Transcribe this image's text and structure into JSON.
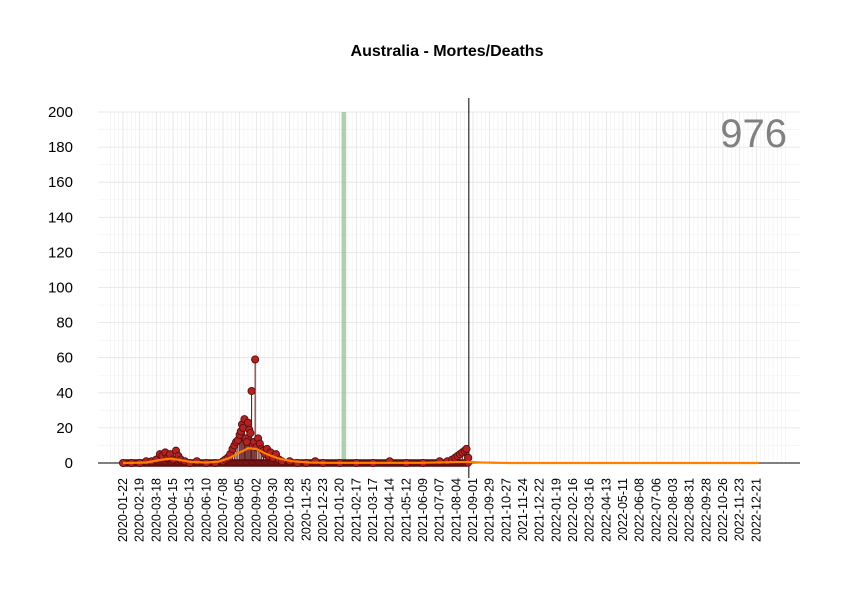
{
  "chart_data": {
    "type": "line",
    "title": "Australia - Mortes/Deaths",
    "total_label": "976",
    "xlabel": "",
    "ylabel": "",
    "ylim": [
      0,
      200
    ],
    "y_ticks": [
      0,
      20,
      40,
      60,
      80,
      100,
      120,
      140,
      160,
      180,
      200
    ],
    "x_range": [
      "2020-01-22",
      "2023-01-18"
    ],
    "x_tick_labels": [
      "2020-01-22",
      "2020-02-19",
      "2020-03-18",
      "2020-04-15",
      "2020-05-13",
      "2020-06-10",
      "2020-07-08",
      "2020-08-05",
      "2020-09-02",
      "2020-09-30",
      "2020-10-28",
      "2020-11-25",
      "2020-12-23",
      "2021-01-20",
      "2021-02-17",
      "2021-03-17",
      "2021-04-14",
      "2021-05-12",
      "2021-06-09",
      "2021-07-07",
      "2021-08-04",
      "2021-09-01",
      "2021-09-29",
      "2021-10-27",
      "2021-11-24",
      "2021-12-22",
      "2022-01-19",
      "2022-02-16",
      "2022-03-16",
      "2022-04-13",
      "2022-05-11",
      "2022-06-08",
      "2022-07-06",
      "2022-08-03",
      "2022-08-31",
      "2022-09-28",
      "2022-10-26",
      "2022-11-23",
      "2022-12-21"
    ],
    "vertical_line_date": "2021-08-25",
    "highlight_band": [
      "2021-01-23",
      "2021-01-31"
    ],
    "grid": true,
    "series": [
      {
        "style": "points-with-stems",
        "color": "#b22222",
        "points": [
          [
            "2020-01-22",
            0
          ],
          [
            "2020-02-05",
            0
          ],
          [
            "2020-02-19",
            0
          ],
          [
            "2020-03-01",
            1
          ],
          [
            "2020-03-10",
            1
          ],
          [
            "2020-03-18",
            2
          ],
          [
            "2020-03-24",
            5
          ],
          [
            "2020-03-28",
            4
          ],
          [
            "2020-04-02",
            6
          ],
          [
            "2020-04-06",
            3
          ],
          [
            "2020-04-10",
            5
          ],
          [
            "2020-04-15",
            2
          ],
          [
            "2020-04-20",
            7
          ],
          [
            "2020-04-24",
            4
          ],
          [
            "2020-04-28",
            2
          ],
          [
            "2020-05-05",
            1
          ],
          [
            "2020-05-13",
            0
          ],
          [
            "2020-05-25",
            1
          ],
          [
            "2020-06-10",
            0
          ],
          [
            "2020-06-25",
            0
          ],
          [
            "2020-07-08",
            1
          ],
          [
            "2020-07-12",
            2
          ],
          [
            "2020-07-16",
            3
          ],
          [
            "2020-07-20",
            5
          ],
          [
            "2020-07-24",
            8
          ],
          [
            "2020-07-27",
            10
          ],
          [
            "2020-07-30",
            12
          ],
          [
            "2020-08-02",
            13
          ],
          [
            "2020-08-05",
            16
          ],
          [
            "2020-08-07",
            18
          ],
          [
            "2020-08-09",
            22
          ],
          [
            "2020-08-11",
            20
          ],
          [
            "2020-08-13",
            25
          ],
          [
            "2020-08-15",
            14
          ],
          [
            "2020-08-17",
            12
          ],
          [
            "2020-08-19",
            23
          ],
          [
            "2020-08-21",
            19
          ],
          [
            "2020-08-23",
            17
          ],
          [
            "2020-08-25",
            41
          ],
          [
            "2020-08-27",
            10
          ],
          [
            "2020-08-29",
            12
          ],
          [
            "2020-08-31",
            59
          ],
          [
            "2020-09-02",
            9
          ],
          [
            "2020-09-05",
            14
          ],
          [
            "2020-09-08",
            11
          ],
          [
            "2020-09-11",
            8
          ],
          [
            "2020-09-14",
            7
          ],
          [
            "2020-09-17",
            5
          ],
          [
            "2020-09-20",
            8
          ],
          [
            "2020-09-23",
            4
          ],
          [
            "2020-09-26",
            6
          ],
          [
            "2020-09-30",
            3
          ],
          [
            "2020-10-05",
            5
          ],
          [
            "2020-10-10",
            2
          ],
          [
            "2020-10-15",
            1
          ],
          [
            "2020-10-28",
            1
          ],
          [
            "2020-11-10",
            0
          ],
          [
            "2020-11-25",
            0
          ],
          [
            "2020-12-10",
            1
          ],
          [
            "2020-12-23",
            0
          ],
          [
            "2021-01-20",
            0
          ],
          [
            "2021-02-17",
            0
          ],
          [
            "2021-03-17",
            0
          ],
          [
            "2021-04-14",
            1
          ],
          [
            "2021-05-12",
            0
          ],
          [
            "2021-06-09",
            0
          ],
          [
            "2021-07-07",
            1
          ],
          [
            "2021-07-20",
            1
          ],
          [
            "2021-07-28",
            2
          ],
          [
            "2021-08-02",
            3
          ],
          [
            "2021-08-06",
            4
          ],
          [
            "2021-08-10",
            5
          ],
          [
            "2021-08-14",
            6
          ],
          [
            "2021-08-18",
            7
          ],
          [
            "2021-08-21",
            8
          ],
          [
            "2021-08-24",
            3
          ]
        ]
      },
      {
        "style": "smoothed-line",
        "color": "#ff7f00",
        "points": [
          [
            "2020-01-22",
            0
          ],
          [
            "2020-03-01",
            0.3
          ],
          [
            "2020-03-20",
            1.5
          ],
          [
            "2020-04-10",
            2.5
          ],
          [
            "2020-04-25",
            1.8
          ],
          [
            "2020-05-15",
            0.6
          ],
          [
            "2020-06-10",
            0.3
          ],
          [
            "2020-07-01",
            0.8
          ],
          [
            "2020-07-20",
            3
          ],
          [
            "2020-08-05",
            6
          ],
          [
            "2020-08-20",
            8.5
          ],
          [
            "2020-09-02",
            8
          ],
          [
            "2020-09-20",
            5
          ],
          [
            "2020-10-10",
            2.5
          ],
          [
            "2020-11-01",
            1
          ],
          [
            "2020-12-01",
            0.3
          ],
          [
            "2021-01-01",
            0.1
          ],
          [
            "2021-03-01",
            0.1
          ],
          [
            "2021-06-01",
            0.1
          ],
          [
            "2021-07-15",
            0.4
          ],
          [
            "2021-08-24",
            0.7
          ],
          [
            "2021-09-15",
            0.3
          ],
          [
            "2021-11-01",
            0
          ],
          [
            "2022-06-01",
            0
          ],
          [
            "2022-12-25",
            0
          ]
        ]
      }
    ]
  }
}
